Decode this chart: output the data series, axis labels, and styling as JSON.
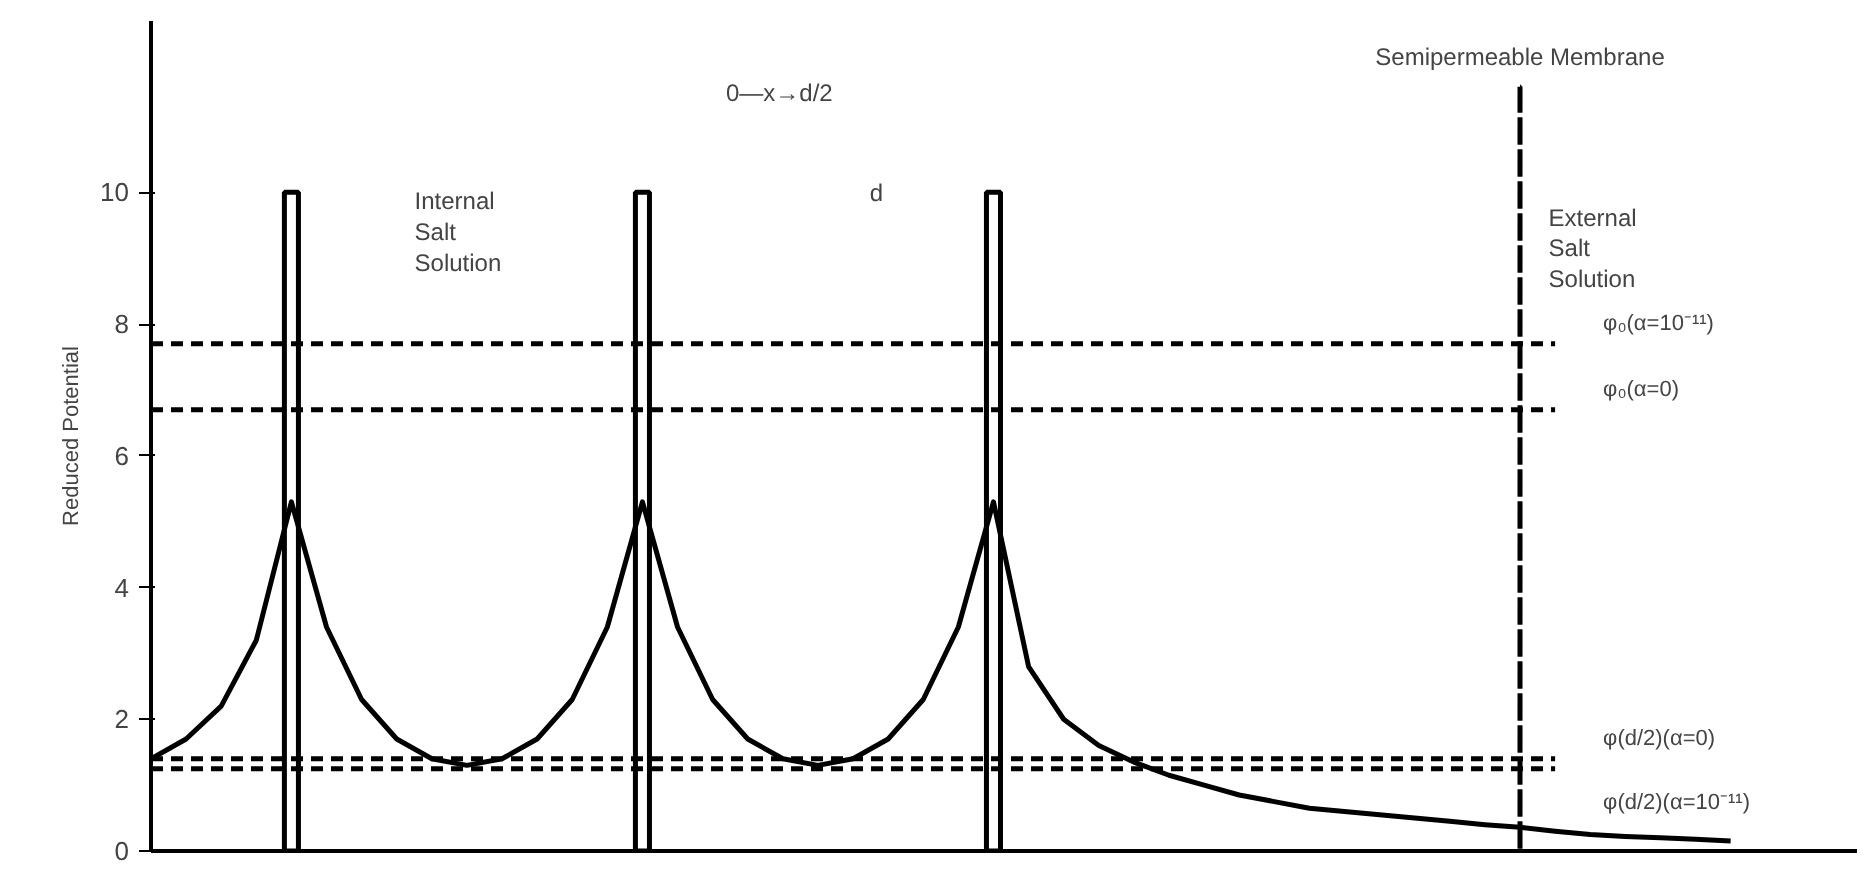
{
  "chart_data": {
    "type": "line",
    "ylabel": "Reduced Potential",
    "ylim": [
      0,
      12.6
    ],
    "yticks": [
      0,
      2,
      4,
      6,
      8,
      10
    ],
    "tick_labels": "y",
    "grid": false,
    "categories": [
      null,
      null,
      null,
      null,
      null,
      null,
      null,
      null,
      null,
      null,
      null,
      null,
      null,
      null,
      null,
      null,
      null,
      null,
      null,
      null,
      null,
      null,
      null,
      null,
      null,
      null,
      null,
      null,
      null,
      null,
      null,
      null,
      null,
      null,
      null,
      null,
      null,
      null,
      null,
      null,
      null,
      null,
      null,
      null,
      null,
      null
    ],
    "series": [
      {
        "color": "#000000",
        "values": [
          1.4,
          1.7,
          2.2,
          3.2,
          5.3,
          3.4,
          2.3,
          1.7,
          1.4,
          1.3,
          1.4,
          1.7,
          2.3,
          3.4,
          5.3,
          3.4,
          2.3,
          1.7,
          1.4,
          1.3,
          1.4,
          1.7,
          2.3,
          3.4,
          5.3,
          2.8,
          2.0,
          1.6,
          1.35,
          1.15,
          1.0,
          0.85,
          0.75,
          0.65,
          0.6,
          0.55,
          0.5,
          0.45,
          0.4,
          0.36,
          0.3,
          0.25,
          0.22,
          0.2,
          0.18,
          0.15
        ]
      },
      {
        "type": "bar",
        "color": "#000000",
        "values": [
          null,
          null,
          null,
          null,
          10,
          null,
          null,
          null,
          null,
          null,
          null,
          null,
          null,
          null,
          10,
          null,
          null,
          null,
          null,
          null,
          null,
          null,
          null,
          null,
          10,
          null,
          null,
          null,
          null,
          null,
          null,
          null,
          null,
          null,
          null,
          null,
          null,
          null,
          null,
          null,
          null,
          null,
          null,
          null,
          null,
          null
        ]
      },
      {
        "type": "bar",
        "name": "Semipermeable Membrane",
        "color": "#000000",
        "line_style": "dashdot",
        "values": [
          null,
          null,
          null,
          null,
          null,
          null,
          null,
          null,
          null,
          null,
          null,
          null,
          null,
          null,
          null,
          null,
          null,
          null,
          null,
          null,
          null,
          null,
          null,
          null,
          null,
          null,
          null,
          null,
          null,
          null,
          null,
          null,
          null,
          null,
          null,
          null,
          null,
          null,
          null,
          11.6,
          null,
          null,
          null,
          null,
          null,
          null
        ]
      },
      {
        "name": "φ₀(α=10⁻¹¹)",
        "color": "#000000",
        "line_style": "dashed",
        "values": [
          7.7,
          7.7,
          7.7,
          7.7,
          7.7,
          7.7,
          7.7,
          7.7,
          7.7,
          7.7,
          7.7,
          7.7,
          7.7,
          7.7,
          7.7,
          7.7,
          7.7,
          7.7,
          7.7,
          7.7,
          7.7,
          7.7,
          7.7,
          7.7,
          7.7,
          7.7,
          7.7,
          7.7,
          7.7,
          7.7,
          7.7,
          7.7,
          7.7,
          7.7,
          7.7,
          7.7,
          7.7,
          7.7,
          7.7,
          7.7,
          7.7,
          null,
          null,
          null,
          null,
          null
        ]
      },
      {
        "name": "φ₀(α=0)",
        "color": "#000000",
        "line_style": "dashed",
        "values": [
          6.7,
          6.7,
          6.7,
          6.7,
          6.7,
          6.7,
          6.7,
          6.7,
          6.7,
          6.7,
          6.7,
          6.7,
          6.7,
          6.7,
          6.7,
          6.7,
          6.7,
          6.7,
          6.7,
          6.7,
          6.7,
          6.7,
          6.7,
          6.7,
          6.7,
          6.7,
          6.7,
          6.7,
          6.7,
          6.7,
          6.7,
          6.7,
          6.7,
          6.7,
          6.7,
          6.7,
          6.7,
          6.7,
          6.7,
          6.7,
          6.7,
          null,
          null,
          null,
          null,
          null
        ]
      },
      {
        "name": "φ(d/2)(α=0)",
        "color": "#000000",
        "line_style": "dashed",
        "values": [
          1.4,
          1.4,
          1.4,
          1.4,
          1.4,
          1.4,
          1.4,
          1.4,
          1.4,
          1.4,
          1.4,
          1.4,
          1.4,
          1.4,
          1.4,
          1.4,
          1.4,
          1.4,
          1.4,
          1.4,
          1.4,
          1.4,
          1.4,
          1.4,
          1.4,
          1.4,
          1.4,
          1.4,
          1.4,
          1.4,
          1.4,
          1.4,
          1.4,
          1.4,
          1.4,
          1.4,
          1.4,
          1.4,
          1.4,
          1.4,
          1.4,
          null,
          null,
          null,
          null,
          null
        ]
      },
      {
        "name": "φ(d/2)(α=10⁻¹¹)",
        "color": "#000000",
        "line_style": "dashed",
        "values": [
          1.25,
          1.25,
          1.25,
          1.25,
          1.25,
          1.25,
          1.25,
          1.25,
          1.25,
          1.25,
          1.25,
          1.25,
          1.25,
          1.25,
          1.25,
          1.25,
          1.25,
          1.25,
          1.25,
          1.25,
          1.25,
          1.25,
          1.25,
          1.25,
          1.25,
          1.25,
          1.25,
          1.25,
          1.25,
          1.25,
          1.25,
          1.25,
          1.25,
          1.25,
          1.25,
          1.25,
          1.25,
          1.25,
          1.25,
          1.25,
          1.25,
          null,
          null,
          null,
          null,
          null
        ]
      }
    ],
    "annotations": [
      "Internal\nSalt\nSolution",
      "External\nSalt\nSolution",
      "0—x→d/2",
      "d"
    ]
  }
}
